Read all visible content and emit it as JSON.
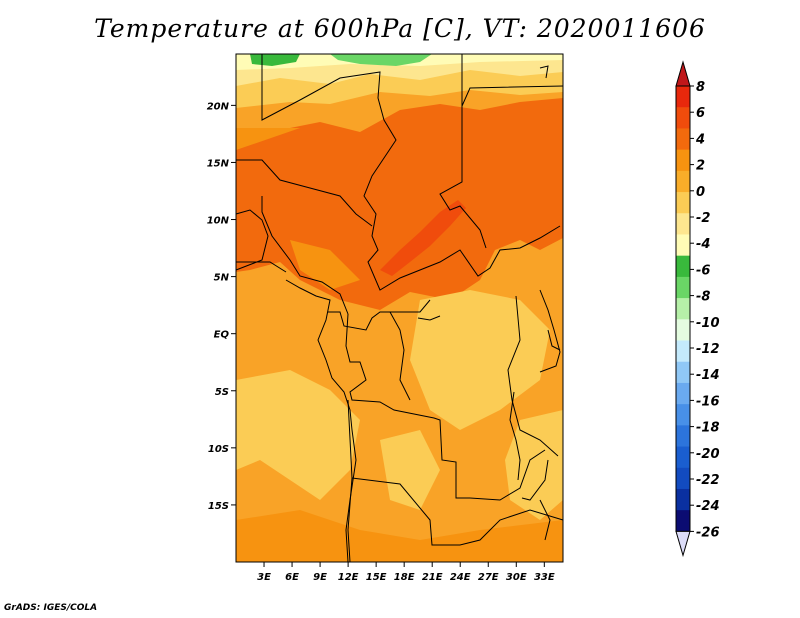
{
  "title": "Temperature at 600hPa [C], VT: 2020011606",
  "credit": "GrADS: IGES/COLA",
  "map": {
    "lon_range": [
      0,
      35
    ],
    "lat_range": [
      -20,
      24.5
    ],
    "lat_ticks": [
      {
        "value": 20,
        "label": "20N"
      },
      {
        "value": 15,
        "label": "15N"
      },
      {
        "value": 10,
        "label": "10N"
      },
      {
        "value": 5,
        "label": "5N"
      },
      {
        "value": 0,
        "label": "EQ"
      },
      {
        "value": -5,
        "label": "5S"
      },
      {
        "value": -10,
        "label": "10S"
      },
      {
        "value": -15,
        "label": "15S"
      }
    ],
    "lon_ticks": [
      {
        "value": 3,
        "label": "3E"
      },
      {
        "value": 6,
        "label": "6E"
      },
      {
        "value": 9,
        "label": "9E"
      },
      {
        "value": 12,
        "label": "12E"
      },
      {
        "value": 15,
        "label": "15E"
      },
      {
        "value": 18,
        "label": "18E"
      },
      {
        "value": 21,
        "label": "21E"
      },
      {
        "value": 24,
        "label": "24E"
      },
      {
        "value": 27,
        "label": "27E"
      },
      {
        "value": 30,
        "label": "30E"
      },
      {
        "value": 33,
        "label": "33E"
      }
    ],
    "background_color": "#f9a327"
  },
  "colorbar": {
    "levels": [
      {
        "label": "8",
        "color": "#e8280c"
      },
      {
        "label": "6",
        "color": "#f04c0c"
      },
      {
        "label": "4",
        "color": "#f26a0d"
      },
      {
        "label": "2",
        "color": "#f79310"
      },
      {
        "label": "0",
        "color": "#f9ad29"
      },
      {
        "label": "-2",
        "color": "#fbcc55"
      },
      {
        "label": "-4",
        "color": "#fde68f"
      },
      {
        "label": "-6",
        "color": "#fffcb6"
      },
      {
        "label": "-8",
        "color": "#39b93c"
      },
      {
        "label": "-10",
        "color": "#6ad666"
      },
      {
        "label": "-12",
        "color": "#b6f0a8"
      },
      {
        "label": "-14",
        "color": "#e4fce0"
      },
      {
        "label": "-16",
        "color": "#c4eafc"
      },
      {
        "label": "-18",
        "color": "#90c8f6"
      },
      {
        "label": "-20",
        "color": "#6aaaf0"
      },
      {
        "label": "-22",
        "color": "#4890e8"
      },
      {
        "label": "-24",
        "color": "#2c74dc"
      },
      {
        "label": "-26",
        "color": "#1a5ed0"
      }
    ],
    "extra_colors": [
      "#124bc0",
      "#0a30a0",
      "#0b0c72"
    ],
    "top_tip_color": "#c0171a",
    "bottom_tip_color": "#dcdcf8"
  }
}
